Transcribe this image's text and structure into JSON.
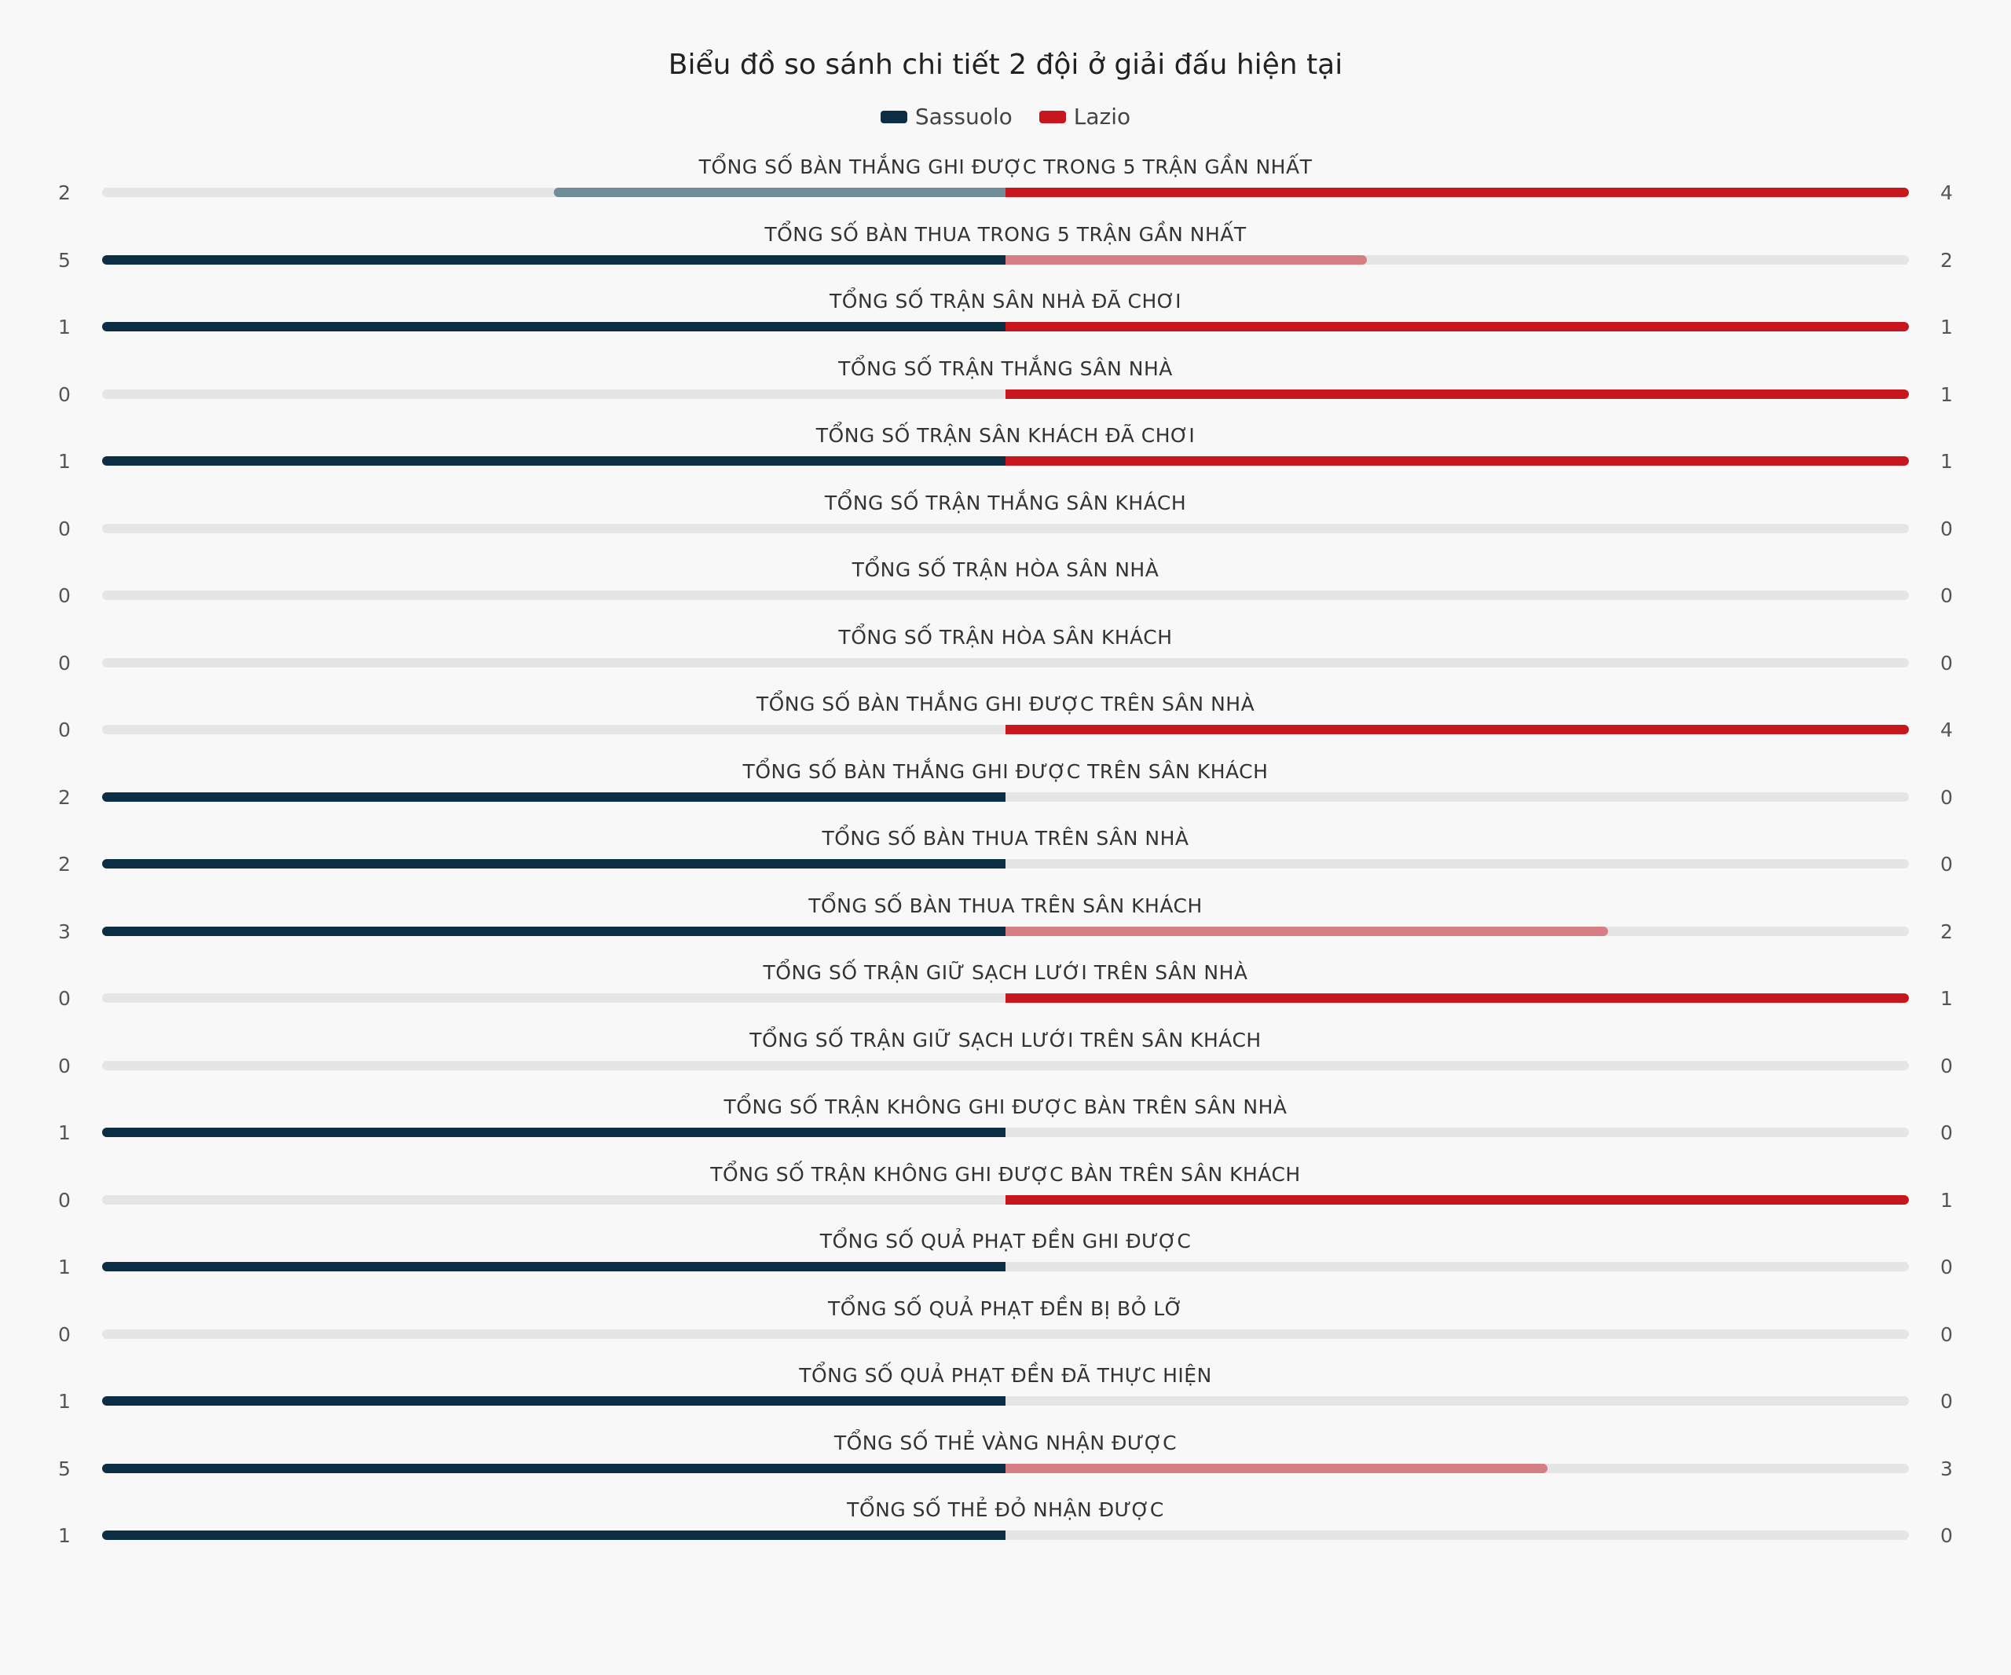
{
  "chart_data": {
    "type": "diverging-bar",
    "title": "Biểu đồ so sánh chi tiết 2 đội ở giải đấu hiện tại",
    "legend_position": "top-center",
    "series": [
      {
        "name": "Sassuolo",
        "color": "#0b2e45",
        "muted_color": "#6f8c99"
      },
      {
        "name": "Lazio",
        "color": "#c8161e",
        "muted_color": "#d77d84"
      }
    ],
    "rows": [
      {
        "label": "TỔNG SỐ BÀN THẮNG GHI ĐƯỢC TRONG 5 TRẬN GẦN NHẤT",
        "left": 2,
        "right": 4
      },
      {
        "label": "TỔNG SỐ BÀN THUA TRONG 5 TRẬN GẦN NHẤT",
        "left": 5,
        "right": 2
      },
      {
        "label": "TỔNG SỐ TRẬN SÂN NHÀ ĐÃ CHƠI",
        "left": 1,
        "right": 1
      },
      {
        "label": "TỔNG SỐ TRẬN THẮNG SÂN NHÀ",
        "left": 0,
        "right": 1
      },
      {
        "label": "TỔNG SỐ TRẬN SÂN KHÁCH ĐÃ CHƠI",
        "left": 1,
        "right": 1
      },
      {
        "label": "TỔNG SỐ TRẬN THẮNG SÂN KHÁCH",
        "left": 0,
        "right": 0
      },
      {
        "label": "TỔNG SỐ TRẬN HÒA SÂN NHÀ",
        "left": 0,
        "right": 0
      },
      {
        "label": "TỔNG SỐ TRẬN HÒA SÂN KHÁCH",
        "left": 0,
        "right": 0
      },
      {
        "label": "TỔNG SỐ BÀN THẮNG GHI ĐƯỢC TRÊN SÂN NHÀ",
        "left": 0,
        "right": 4
      },
      {
        "label": "TỔNG SỐ BÀN THẮNG GHI ĐƯỢC TRÊN SÂN KHÁCH",
        "left": 2,
        "right": 0
      },
      {
        "label": "TỔNG SỐ BÀN THUA TRÊN SÂN NHÀ",
        "left": 2,
        "right": 0
      },
      {
        "label": "TỔNG SỐ BÀN THUA TRÊN SÂN KHÁCH",
        "left": 3,
        "right": 2
      },
      {
        "label": "TỔNG SỐ TRẬN GIỮ SẠCH LƯỚI TRÊN SÂN NHÀ",
        "left": 0,
        "right": 1
      },
      {
        "label": "TỔNG SỐ TRẬN GIỮ SẠCH LƯỚI TRÊN SÂN KHÁCH",
        "left": 0,
        "right": 0
      },
      {
        "label": "TỔNG SỐ TRẬN KHÔNG GHI ĐƯỢC BÀN TRÊN SÂN NHÀ",
        "left": 1,
        "right": 0
      },
      {
        "label": "TỔNG SỐ TRẬN KHÔNG GHI ĐƯỢC BÀN TRÊN SÂN KHÁCH",
        "left": 0,
        "right": 1
      },
      {
        "label": "TỔNG SỐ QUẢ PHẠT ĐỀN GHI ĐƯỢC",
        "left": 1,
        "right": 0
      },
      {
        "label": "TỔNG SỐ QUẢ PHẠT ĐỀN BỊ BỎ LỠ",
        "left": 0,
        "right": 0
      },
      {
        "label": "TỔNG SỐ QUẢ PHẠT ĐỀN ĐÃ THỰC HIỆN",
        "left": 1,
        "right": 0
      },
      {
        "label": "TỔNG SỐ THẺ VÀNG NHẬN ĐƯỢC",
        "left": 5,
        "right": 3
      },
      {
        "label": "TỔNG SỐ THẺ ĐỎ NHẬN ĐƯỢC",
        "left": 1,
        "right": 0
      }
    ]
  }
}
